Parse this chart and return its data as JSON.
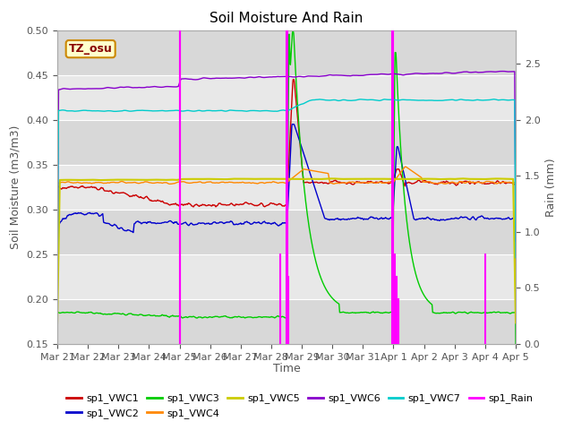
{
  "title": "Soil Moisture And Rain",
  "xlabel": "Time",
  "ylabel_left": "Soil Moisture (m3/m3)",
  "ylabel_right": "Rain (mm)",
  "ylim_left": [
    0.15,
    0.5
  ],
  "ylim_right": [
    0.0,
    2.8
  ],
  "x_ticks": [
    "Mar 21",
    "Mar 22",
    "Mar 23",
    "Mar 24",
    "Mar 25",
    "Mar 26",
    "Mar 27",
    "Mar 28",
    "Mar 29",
    "Mar 30",
    "Mar 31",
    "Apr 1",
    "Apr 2",
    "Apr 3",
    "Apr 4",
    "Apr 5"
  ],
  "colors": {
    "VWC1": "#cc0000",
    "VWC2": "#0000cc",
    "VWC3": "#00cc00",
    "VWC4": "#ff8800",
    "VWC5": "#cccc00",
    "VWC6": "#8800cc",
    "VWC7": "#00cccc",
    "Rain": "#ff00ff"
  },
  "band_colors": [
    "#d8d8d8",
    "#e8e8e8"
  ],
  "legend_label": "TZ_osu",
  "annotation_fg": "#880000",
  "annotation_bg": "#ffffcc",
  "annotation_edge": "#cc8800"
}
